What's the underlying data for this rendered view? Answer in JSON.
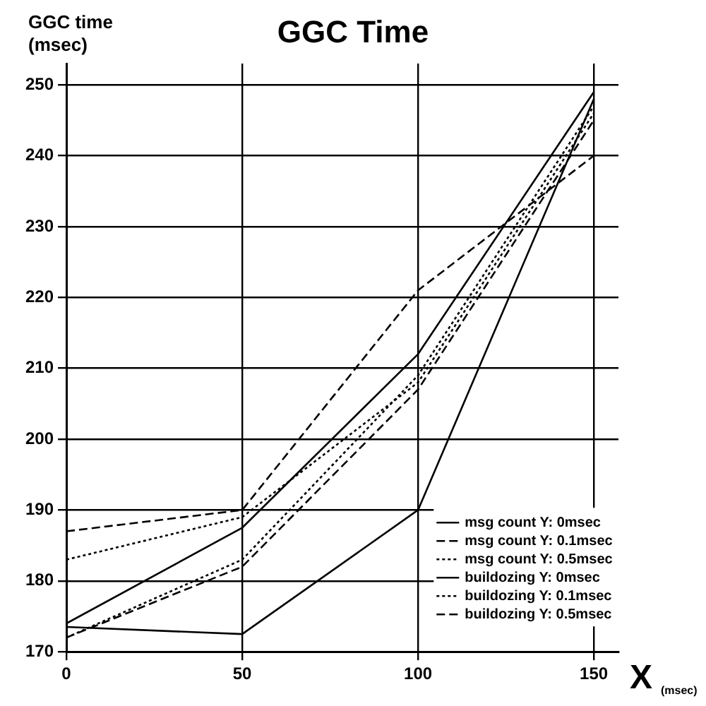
{
  "chart_data": {
    "type": "line",
    "title": "GGC Time",
    "xlabel": "X (msec)",
    "ylabel": "GGC time (msec)",
    "x": [
      0,
      50,
      100,
      150
    ],
    "xlim": [
      0,
      157
    ],
    "xticks": [
      0,
      50,
      100,
      150
    ],
    "ylim": [
      170,
      253
    ],
    "yticks": [
      170,
      180,
      190,
      200,
      210,
      220,
      230,
      240,
      250
    ],
    "grid": true,
    "legend": "bottom right",
    "marker": "none",
    "series": [
      {
        "name": "msg count Y: 0msec",
        "color": "#000000",
        "line_style": "solid",
        "values": [
          174,
          187.5,
          212,
          249
        ]
      },
      {
        "name": "msg count Y: 0.1msec",
        "color": "#000000",
        "line_style": "dashed",
        "values": [
          187,
          190,
          221,
          240
        ]
      },
      {
        "name": "msg count Y: 0.5msec",
        "color": "#000000",
        "line_style": "dotted",
        "values": [
          183,
          189,
          208,
          246
        ]
      },
      {
        "name": "buildozing Y: 0msec",
        "color": "#000000",
        "line_style": "solid",
        "values": [
          173.5,
          172.5,
          190,
          248
        ]
      },
      {
        "name": "buildozing Y: 0.1msec",
        "color": "#000000",
        "line_style": "dotted",
        "values": [
          172,
          183,
          209,
          247
        ]
      },
      {
        "name": "buildozing Y: 0.5msec",
        "color": "#000000",
        "line_style": "dashed",
        "values": [
          172,
          182,
          207,
          245
        ]
      }
    ]
  }
}
